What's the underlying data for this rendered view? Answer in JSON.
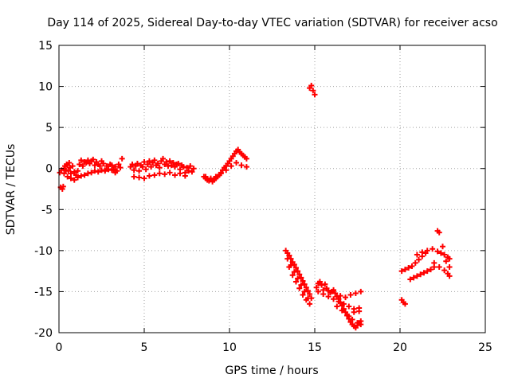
{
  "chart_data": {
    "type": "scatter",
    "title": "Day 114 of 2025, Sidereal Day-to-day VTEC variation (SDTVAR) for receiver acso",
    "xlabel": "GPS time / hours",
    "ylabel": "SDTVAR / TECUs",
    "xlim": [
      0,
      25
    ],
    "ylim": [
      -20,
      15
    ],
    "xticks": [
      0,
      5,
      10,
      15,
      20,
      25
    ],
    "yticks": [
      -20,
      -15,
      -10,
      -5,
      0,
      5,
      10,
      15
    ],
    "grid": true,
    "marker": "plus",
    "color": "#ff0000",
    "series": [
      {
        "name": "SDTVAR",
        "x": [
          0.05,
          0.1,
          0.2,
          0.25,
          0.3,
          0.35,
          0.4,
          0.45,
          0.5,
          0.55,
          0.6,
          0.65,
          0.7,
          0.8,
          0.9,
          1.0,
          1.1,
          1.2,
          1.3,
          1.4,
          1.5,
          1.6,
          1.7,
          1.8,
          1.9,
          2.0,
          2.1,
          2.2,
          2.3,
          2.4,
          2.5,
          2.6,
          2.7,
          2.8,
          2.9,
          3.0,
          3.1,
          3.2,
          3.3,
          3.4,
          3.5,
          3.6,
          3.7,
          0.15,
          0.3,
          0.5,
          0.7,
          0.9,
          1.1,
          1.3,
          1.5,
          1.7,
          1.9,
          2.1,
          2.3,
          2.5,
          2.7,
          2.9,
          3.1,
          3.3,
          4.2,
          4.3,
          4.4,
          4.5,
          4.6,
          4.7,
          4.8,
          4.9,
          5.0,
          5.1,
          5.2,
          5.3,
          5.4,
          5.5,
          5.6,
          5.7,
          5.8,
          5.9,
          6.0,
          6.1,
          6.2,
          6.3,
          6.4,
          6.5,
          6.6,
          6.7,
          6.8,
          6.9,
          7.0,
          7.1,
          7.2,
          7.3,
          7.4,
          7.5,
          7.6,
          7.7,
          7.8,
          7.9,
          4.4,
          4.7,
          5.0,
          5.3,
          5.6,
          5.9,
          6.2,
          6.5,
          6.8,
          7.1,
          7.4,
          8.5,
          8.6,
          8.7,
          8.8,
          8.9,
          9.0,
          9.1,
          9.2,
          9.3,
          9.4,
          9.5,
          9.6,
          9.7,
          9.8,
          9.9,
          10.0,
          10.1,
          10.2,
          10.3,
          10.4,
          10.5,
          10.6,
          10.7,
          10.8,
          10.9,
          11.0,
          8.6,
          8.9,
          9.2,
          9.5,
          9.8,
          10.1,
          10.4,
          10.7,
          11.0,
          14.7,
          14.8,
          14.9,
          15.0,
          13.3,
          13.4,
          13.5,
          13.6,
          13.7,
          13.8,
          13.9,
          14.0,
          14.1,
          14.2,
          14.3,
          14.4,
          14.5,
          14.6,
          14.7,
          14.8,
          13.4,
          13.6,
          13.8,
          14.0,
          14.2,
          14.4,
          14.6,
          13.5,
          13.7,
          13.9,
          14.1,
          14.3,
          14.5,
          14.7,
          15.1,
          15.2,
          15.3,
          15.4,
          15.5,
          15.6,
          15.7,
          15.8,
          15.9,
          16.0,
          16.1,
          16.2,
          16.3,
          16.4,
          16.5,
          16.6,
          16.7,
          16.8,
          16.9,
          17.0,
          17.1,
          17.2,
          17.3,
          17.4,
          17.5,
          17.6,
          17.7,
          15.2,
          15.5,
          15.8,
          16.1,
          16.4,
          16.7,
          17.0,
          17.3,
          17.6,
          16.5,
          16.8,
          17.1,
          17.4,
          17.7,
          16.3,
          16.6,
          16.9,
          17.2,
          17.5,
          17.7,
          17.0,
          17.3,
          17.6,
          20.1,
          20.2,
          20.3,
          20.1,
          20.3,
          20.5,
          20.7,
          20.9,
          21.1,
          21.3,
          21.5,
          20.6,
          20.8,
          21.0,
          21.2,
          21.4,
          21.6,
          21.8,
          22.0,
          21.0,
          21.3,
          21.6,
          21.9,
          22.2,
          22.4,
          22.6,
          22.8,
          22.9,
          22.0,
          22.3,
          22.6,
          22.8,
          22.9,
          22.2,
          22.3,
          22.5,
          22.7,
          22.9
        ],
        "y": [
          -0.5,
          -2.3,
          -2.5,
          -2.2,
          0,
          0.3,
          -0.2,
          0.5,
          0.4,
          -0.3,
          0.7,
          0.1,
          -0.6,
          0.3,
          -0.4,
          -0.8,
          -0.3,
          0.5,
          1.0,
          0.3,
          0.8,
          0.7,
          1.0,
          0.6,
          0.9,
          1.1,
          0.4,
          0.8,
          0.5,
          0.3,
          0.9,
          0.6,
          -0.2,
          0.3,
          -0.1,
          0.5,
          0.4,
          -0.1,
          0.2,
          -0.3,
          0.5,
          0.1,
          1.2,
          -0.2,
          -0.6,
          -1.0,
          -1.2,
          -1.4,
          -1.1,
          -0.9,
          -0.8,
          -0.6,
          -0.5,
          -0.3,
          -0.4,
          -0.2,
          -0.3,
          -0.1,
          -0.2,
          -0.5,
          0.2,
          0.5,
          -0.2,
          0.3,
          0.6,
          -0.3,
          0.4,
          0.2,
          0.8,
          -0.1,
          0.5,
          0.9,
          0.2,
          0.7,
          1.0,
          0.4,
          0.6,
          0.1,
          0.9,
          1.2,
          0.5,
          0.8,
          0.3,
          0.9,
          0.4,
          0.7,
          0.2,
          0.5,
          0.6,
          -0.1,
          0.4,
          0.2,
          -0.5,
          0.1,
          -0.3,
          0.3,
          -0.4,
          0.0,
          -1.0,
          -1.1,
          -1.2,
          -0.9,
          -0.8,
          -0.6,
          -0.7,
          -0.5,
          -0.8,
          -0.6,
          -0.9,
          -1.0,
          -1.2,
          -1.4,
          -1.5,
          -1.3,
          -1.6,
          -1.4,
          -1.2,
          -1.0,
          -0.8,
          -0.5,
          -0.2,
          0.1,
          0.3,
          0.6,
          0.9,
          1.2,
          1.5,
          1.8,
          2.1,
          2.3,
          2.0,
          1.8,
          1.6,
          1.4,
          1.2,
          -1.0,
          -1.2,
          -1.0,
          -0.6,
          -0.2,
          0.3,
          0.7,
          0.4,
          0.2,
          9.8,
          10.1,
          9.5,
          9.0,
          -10.0,
          -10.3,
          -10.6,
          -11.0,
          -11.4,
          -11.7,
          -12.1,
          -12.5,
          -12.9,
          -13.3,
          -13.7,
          -14.1,
          -14.5,
          -14.9,
          -15.3,
          -15.8,
          -11.0,
          -11.8,
          -12.6,
          -13.4,
          -14.2,
          -15.0,
          -15.8,
          -12.0,
          -13.0,
          -13.8,
          -14.6,
          -15.4,
          -16.0,
          -16.5,
          -14.5,
          -14.0,
          -13.8,
          -14.2,
          -14.8,
          -14.1,
          -14.6,
          -14.9,
          -15.1,
          -15.0,
          -14.8,
          -15.2,
          -15.6,
          -15.9,
          -16.3,
          -16.7,
          -17.1,
          -17.5,
          -17.9,
          -18.3,
          -18.7,
          -19.0,
          -19.2,
          -19.4,
          -19.1,
          -18.8,
          -18.6,
          -15.0,
          -15.3,
          -15.6,
          -15.9,
          -16.2,
          -16.5,
          -16.8,
          -17.1,
          -17.4,
          -15.5,
          -15.7,
          -15.4,
          -15.2,
          -15.0,
          -16.8,
          -17.3,
          -17.9,
          -18.4,
          -18.8,
          -19.0,
          -18.0,
          -17.5,
          -17.0,
          -16.0,
          -16.3,
          -16.5,
          -12.5,
          -12.3,
          -12.1,
          -11.9,
          -11.5,
          -11.1,
          -10.7,
          -10.3,
          -13.5,
          -13.3,
          -13.1,
          -12.9,
          -12.7,
          -12.5,
          -12.3,
          -12.0,
          -10.5,
          -10.2,
          -10.0,
          -9.8,
          -10.1,
          -10.3,
          -10.5,
          -10.8,
          -11.0,
          -11.5,
          -12.0,
          -12.4,
          -12.8,
          -13.1,
          -7.6,
          -7.8,
          -9.5,
          -11.3,
          -12.0
        ]
      }
    ]
  }
}
